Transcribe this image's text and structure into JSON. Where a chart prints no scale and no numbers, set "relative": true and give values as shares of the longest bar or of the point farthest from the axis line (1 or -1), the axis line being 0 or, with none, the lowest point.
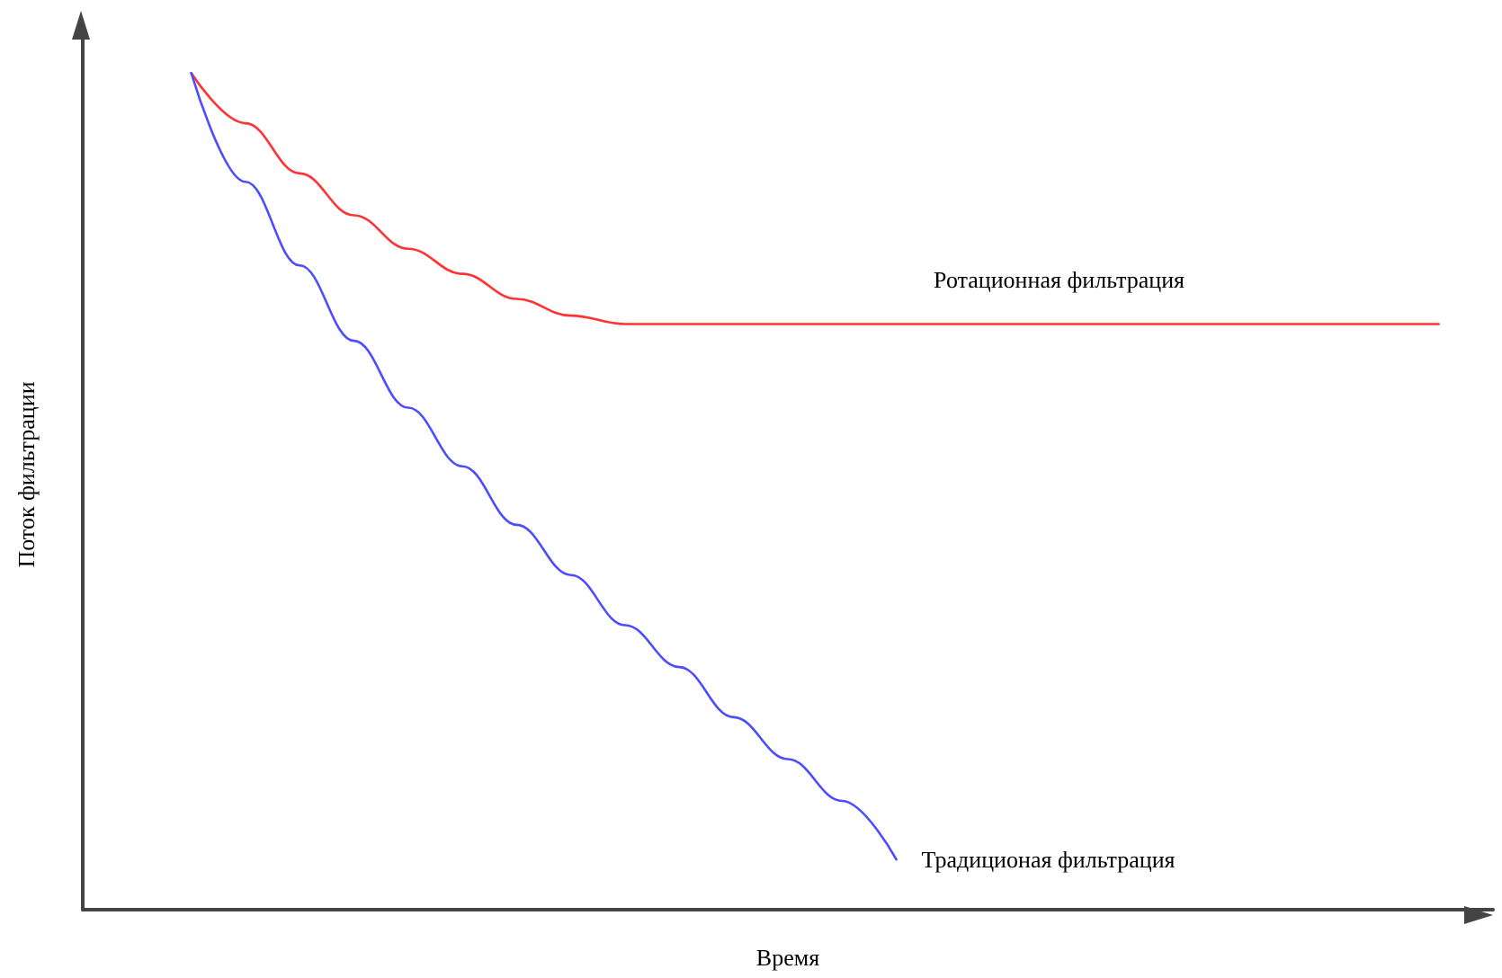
{
  "chart_data": {
    "type": "line",
    "relative": true,
    "xlabel": "Время",
    "ylabel": "Поток фильтрации",
    "categories": [
      null,
      null,
      null,
      null,
      null,
      null,
      null,
      null,
      null,
      null,
      null,
      null,
      null,
      null,
      null,
      null,
      null,
      null,
      null,
      null,
      null,
      null,
      null,
      null,
      null,
      null,
      null
    ],
    "series": [
      {
        "name": "Ротационная фильтрация",
        "color": "#ff3333",
        "values": [
          null,
          null,
          1,
          0.94,
          0.88,
          0.83,
          0.79,
          0.76,
          0.73,
          0.71,
          0.7,
          0.7,
          0.7,
          0.7,
          0.7,
          0.7,
          0.7,
          0.7,
          0.7,
          0.7,
          0.7,
          0.7,
          0.7,
          0.7,
          0.7,
          0.7,
          null
        ]
      },
      {
        "name": "Традиционая фильтрация",
        "color": "#4d4dff",
        "values": [
          null,
          null,
          1,
          0.87,
          0.77,
          0.68,
          0.6,
          0.53,
          0.46,
          0.4,
          0.34,
          0.29,
          0.23,
          0.18,
          0.13,
          0.06,
          null,
          null,
          null,
          null,
          null,
          null,
          null,
          null,
          null,
          null,
          null
        ]
      }
    ],
    "grid": false,
    "legend": false,
    "marker": "none",
    "line_style": "solid"
  }
}
